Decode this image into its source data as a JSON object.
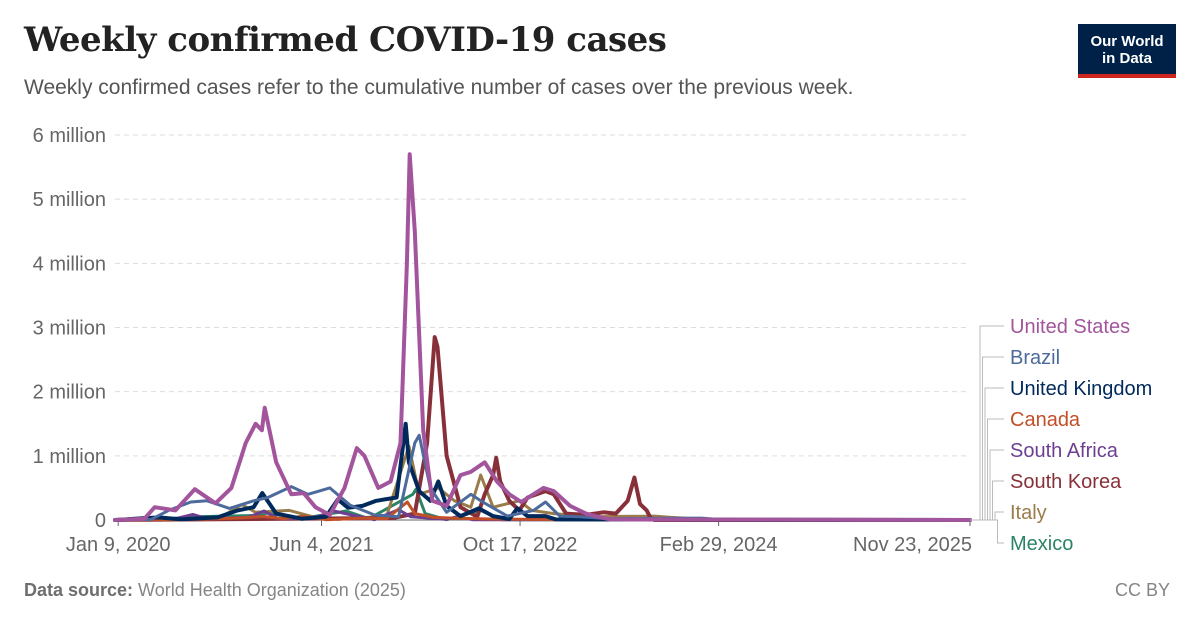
{
  "header": {
    "title": "Weekly confirmed COVID-19 cases",
    "subtitle": "Weekly confirmed cases refer to the cumulative number of cases over the previous week.",
    "logo_line1": "Our World",
    "logo_line2": "in Data"
  },
  "footer": {
    "source_label": "Data source:",
    "source_text": " World Health Organization (2025)",
    "license": "CC BY"
  },
  "colors": {
    "grid": "#dddddd",
    "axis": "#666666",
    "tick_text": "#666666",
    "connector": "#bbbbbb"
  },
  "chart_data": {
    "type": "line",
    "y_ticks": [
      0,
      1000000,
      2000000,
      3000000,
      4000000,
      5000000,
      6000000
    ],
    "y_tick_labels": [
      "0",
      "1 million",
      "2 million",
      "3 million",
      "4 million",
      "5 million",
      "6 million"
    ],
    "x_ticks": [
      "2020-01-09",
      "2021-06-04",
      "2022-10-17",
      "2024-02-29",
      "2025-11-23"
    ],
    "x_tick_labels": [
      "Jan 9, 2020",
      "Jun 4, 2021",
      "Oct 17, 2022",
      "Feb 29, 2024",
      "Nov 23, 2025"
    ],
    "x_range": [
      "2020-01-01",
      "2025-11-23"
    ],
    "ylim": [
      0,
      6000000
    ],
    "grid": "horizontal dashed",
    "legend_placement": "right",
    "series": [
      {
        "name": "United States",
        "color": "#a2559c",
        "width": 4,
        "points": [
          [
            "2020-01-01",
            0
          ],
          [
            "2020-03-15",
            20000
          ],
          [
            "2020-04-10",
            200000
          ],
          [
            "2020-06-01",
            150000
          ],
          [
            "2020-07-20",
            480000
          ],
          [
            "2020-09-10",
            260000
          ],
          [
            "2020-10-20",
            500000
          ],
          [
            "2020-11-25",
            1200000
          ],
          [
            "2020-12-20",
            1500000
          ],
          [
            "2021-01-05",
            1400000
          ],
          [
            "2021-01-12",
            1750000
          ],
          [
            "2021-02-10",
            900000
          ],
          [
            "2021-03-20",
            400000
          ],
          [
            "2021-04-20",
            420000
          ],
          [
            "2021-05-20",
            200000
          ],
          [
            "2021-06-25",
            80000
          ],
          [
            "2021-08-01",
            500000
          ],
          [
            "2021-09-01",
            1120000
          ],
          [
            "2021-09-20",
            1000000
          ],
          [
            "2021-10-25",
            500000
          ],
          [
            "2021-11-25",
            600000
          ],
          [
            "2021-12-20",
            1200000
          ],
          [
            "2022-01-05",
            4000000
          ],
          [
            "2022-01-12",
            5700000
          ],
          [
            "2022-01-25",
            4500000
          ],
          [
            "2022-02-15",
            1400000
          ],
          [
            "2022-03-10",
            300000
          ],
          [
            "2022-04-15",
            220000
          ],
          [
            "2022-05-20",
            700000
          ],
          [
            "2022-06-15",
            750000
          ],
          [
            "2022-07-20",
            900000
          ],
          [
            "2022-08-20",
            600000
          ],
          [
            "2022-09-20",
            400000
          ],
          [
            "2022-10-20",
            280000
          ],
          [
            "2022-12-15",
            500000
          ],
          [
            "2023-01-10",
            450000
          ],
          [
            "2023-02-20",
            220000
          ],
          [
            "2023-04-01",
            100000
          ],
          [
            "2023-05-01",
            50000
          ],
          [
            "2023-06-01",
            10000
          ],
          [
            "2025-11-23",
            0
          ]
        ]
      },
      {
        "name": "Brazil",
        "color": "#4c6a9c",
        "width": 3,
        "points": [
          [
            "2020-01-01",
            0
          ],
          [
            "2020-04-01",
            10000
          ],
          [
            "2020-05-15",
            150000
          ],
          [
            "2020-07-10",
            280000
          ],
          [
            "2020-08-20",
            300000
          ],
          [
            "2020-10-15",
            180000
          ],
          [
            "2020-12-15",
            300000
          ],
          [
            "2021-01-20",
            350000
          ],
          [
            "2021-03-20",
            520000
          ],
          [
            "2021-05-01",
            400000
          ],
          [
            "2021-06-25",
            500000
          ],
          [
            "2021-08-15",
            230000
          ],
          [
            "2021-10-15",
            80000
          ],
          [
            "2021-12-15",
            50000
          ],
          [
            "2022-01-25",
            1200000
          ],
          [
            "2022-02-05",
            1320000
          ],
          [
            "2022-03-05",
            500000
          ],
          [
            "2022-04-15",
            120000
          ],
          [
            "2022-06-15",
            400000
          ],
          [
            "2022-07-15",
            280000
          ],
          [
            "2022-09-15",
            60000
          ],
          [
            "2022-11-20",
            150000
          ],
          [
            "2022-12-20",
            280000
          ],
          [
            "2023-01-25",
            60000
          ],
          [
            "2023-03-15",
            50000
          ],
          [
            "2023-06-01",
            20000
          ],
          [
            "2024-01-15",
            30000
          ],
          [
            "2024-03-01",
            10000
          ],
          [
            "2025-11-23",
            0
          ]
        ]
      },
      {
        "name": "United Kingdom",
        "color": "#00295b",
        "width": 4,
        "points": [
          [
            "2020-01-01",
            0
          ],
          [
            "2020-03-20",
            30000
          ],
          [
            "2020-04-20",
            40000
          ],
          [
            "2020-06-15",
            10000
          ],
          [
            "2020-09-15",
            40000
          ],
          [
            "2020-11-05",
            150000
          ],
          [
            "2020-12-15",
            200000
          ],
          [
            "2021-01-06",
            420000
          ],
          [
            "2021-02-10",
            100000
          ],
          [
            "2021-04-15",
            20000
          ],
          [
            "2021-06-15",
            50000
          ],
          [
            "2021-07-15",
            320000
          ],
          [
            "2021-08-10",
            190000
          ],
          [
            "2021-09-15",
            220000
          ],
          [
            "2021-10-20",
            300000
          ],
          [
            "2021-12-10",
            350000
          ],
          [
            "2022-01-02",
            1500000
          ],
          [
            "2022-01-10",
            900000
          ],
          [
            "2022-02-05",
            450000
          ],
          [
            "2022-03-05",
            300000
          ],
          [
            "2022-03-25",
            600000
          ],
          [
            "2022-04-15",
            220000
          ],
          [
            "2022-05-20",
            60000
          ],
          [
            "2022-07-05",
            180000
          ],
          [
            "2022-08-10",
            60000
          ],
          [
            "2022-09-20",
            15000
          ],
          [
            "2022-10-10",
            180000
          ],
          [
            "2022-11-05",
            60000
          ],
          [
            "2022-12-20",
            60000
          ],
          [
            "2023-01-15",
            10000
          ],
          [
            "2025-11-23",
            0
          ]
        ]
      },
      {
        "name": "Canada",
        "color": "#c15028",
        "width": 3,
        "points": [
          [
            "2020-01-01",
            0
          ],
          [
            "2020-04-15",
            10000
          ],
          [
            "2020-06-01",
            2000
          ],
          [
            "2020-11-01",
            30000
          ],
          [
            "2021-01-10",
            55000
          ],
          [
            "2021-03-01",
            20000
          ],
          [
            "2021-04-20",
            60000
          ],
          [
            "2021-06-15",
            5000
          ],
          [
            "2021-09-15",
            30000
          ],
          [
            "2021-11-15",
            20000
          ],
          [
            "2022-01-06",
            280000
          ],
          [
            "2022-01-25",
            100000
          ],
          [
            "2022-03-15",
            40000
          ],
          [
            "2022-05-01",
            30000
          ],
          [
            "2022-08-01",
            15000
          ],
          [
            "2022-12-15",
            8000
          ],
          [
            "2023-06-01",
            2000
          ],
          [
            "2025-11-23",
            0
          ]
        ]
      },
      {
        "name": "South Africa",
        "color": "#6d3e91",
        "width": 3,
        "points": [
          [
            "2020-01-01",
            0
          ],
          [
            "2020-06-01",
            20000
          ],
          [
            "2020-07-15",
            85000
          ],
          [
            "2020-08-20",
            20000
          ],
          [
            "2020-12-01",
            40000
          ],
          [
            "2021-01-10",
            140000
          ],
          [
            "2021-02-15",
            20000
          ],
          [
            "2021-05-15",
            30000
          ],
          [
            "2021-07-05",
            140000
          ],
          [
            "2021-08-25",
            70000
          ],
          [
            "2021-10-15",
            5000
          ],
          [
            "2021-12-15",
            160000
          ],
          [
            "2022-01-15",
            50000
          ],
          [
            "2022-04-15",
            10000
          ],
          [
            "2022-05-10",
            50000
          ],
          [
            "2022-06-20",
            5000
          ],
          [
            "2025-11-23",
            0
          ]
        ]
      },
      {
        "name": "South Korea",
        "color": "#883039",
        "width": 4,
        "points": [
          [
            "2020-01-01",
            0
          ],
          [
            "2021-12-01",
            30000
          ],
          [
            "2022-01-25",
            100000
          ],
          [
            "2022-02-25",
            1200000
          ],
          [
            "2022-03-16",
            2850000
          ],
          [
            "2022-03-23",
            2700000
          ],
          [
            "2022-04-15",
            1000000
          ],
          [
            "2022-05-20",
            200000
          ],
          [
            "2022-07-01",
            50000
          ],
          [
            "2022-07-20",
            400000
          ],
          [
            "2022-08-10",
            700000
          ],
          [
            "2022-08-18",
            970000
          ],
          [
            "2022-08-28",
            600000
          ],
          [
            "2022-09-20",
            300000
          ],
          [
            "2022-10-15",
            150000
          ],
          [
            "2022-11-05",
            350000
          ],
          [
            "2022-12-20",
            450000
          ],
          [
            "2023-01-10",
            400000
          ],
          [
            "2023-02-10",
            100000
          ],
          [
            "2023-04-01",
            80000
          ],
          [
            "2023-05-15",
            120000
          ],
          [
            "2023-06-15",
            100000
          ],
          [
            "2023-07-15",
            300000
          ],
          [
            "2023-08-01",
            660000
          ],
          [
            "2023-08-15",
            250000
          ],
          [
            "2023-09-01",
            150000
          ],
          [
            "2023-09-10",
            40000
          ],
          [
            "2023-09-20",
            0
          ],
          [
            "2025-11-23",
            0
          ]
        ]
      },
      {
        "name": "Italy",
        "color": "#9a7c4a",
        "width": 3,
        "points": [
          [
            "2020-01-01",
            0
          ],
          [
            "2020-03-20",
            40000
          ],
          [
            "2020-06-01",
            2000
          ],
          [
            "2020-09-15",
            10000
          ],
          [
            "2020-11-15",
            240000
          ],
          [
            "2020-12-20",
            120000
          ],
          [
            "2021-03-15",
            150000
          ],
          [
            "2021-05-20",
            40000
          ],
          [
            "2021-07-15",
            10000
          ],
          [
            "2021-11-15",
            60000
          ],
          [
            "2022-01-10",
            1150000
          ],
          [
            "2022-02-05",
            400000
          ],
          [
            "2022-03-25",
            500000
          ],
          [
            "2022-05-05",
            300000
          ],
          [
            "2022-06-15",
            200000
          ],
          [
            "2022-07-10",
            700000
          ],
          [
            "2022-08-10",
            200000
          ],
          [
            "2022-10-15",
            300000
          ],
          [
            "2022-11-15",
            150000
          ],
          [
            "2023-01-10",
            100000
          ],
          [
            "2023-04-15",
            50000
          ],
          [
            "2023-09-20",
            60000
          ],
          [
            "2023-11-01",
            40000
          ],
          [
            "2024-01-01",
            20000
          ],
          [
            "2024-06-01",
            5000
          ],
          [
            "2025-11-23",
            0
          ]
        ]
      },
      {
        "name": "Mexico",
        "color": "#2c8465",
        "width": 3,
        "points": [
          [
            "2020-01-01",
            0
          ],
          [
            "2020-05-15",
            20000
          ],
          [
            "2020-07-20",
            50000
          ],
          [
            "2020-12-20",
            70000
          ],
          [
            "2021-01-20",
            110000
          ],
          [
            "2021-04-15",
            20000
          ],
          [
            "2021-08-05",
            140000
          ],
          [
            "2021-10-01",
            20000
          ],
          [
            "2022-01-20",
            400000
          ],
          [
            "2022-01-28",
            480000
          ],
          [
            "2022-02-20",
            100000
          ],
          [
            "2022-04-15",
            5000
          ],
          [
            "2022-07-10",
            150000
          ],
          [
            "2022-09-01",
            5000
          ],
          [
            "2025-11-23",
            0
          ]
        ]
      }
    ],
    "legend": [
      {
        "label": "United States",
        "color": "#a2559c"
      },
      {
        "label": "Brazil",
        "color": "#4c6a9c"
      },
      {
        "label": "United Kingdom",
        "color": "#00295b"
      },
      {
        "label": "Canada",
        "color": "#c15028"
      },
      {
        "label": "South Africa",
        "color": "#6d3e91"
      },
      {
        "label": "South Korea",
        "color": "#883039"
      },
      {
        "label": "Italy",
        "color": "#9a7c4a"
      },
      {
        "label": "Mexico",
        "color": "#2c8465"
      }
    ]
  }
}
